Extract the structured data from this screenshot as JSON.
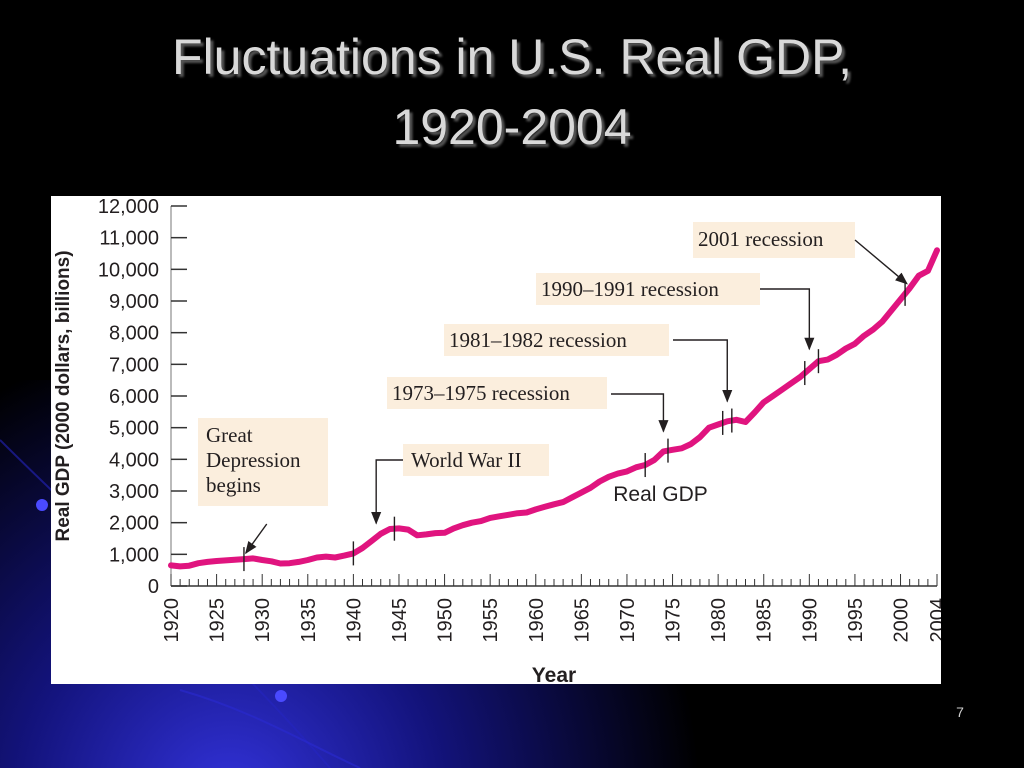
{
  "slide": {
    "title_line1": "Fluctuations in U.S. Real GDP,",
    "title_line2": "1920-2004",
    "page_number": "7"
  },
  "colors": {
    "background": "#000000",
    "line": "#e0147f",
    "callout_fill": "#fbeedd",
    "panel": "#ffffff"
  },
  "chart_data": {
    "type": "line",
    "ylabel": "Real GDP (2000 dollars, billions)",
    "xlabel": "Year",
    "ylim": [
      0,
      12000
    ],
    "yticks": [
      0,
      1000,
      2000,
      3000,
      4000,
      5000,
      6000,
      7000,
      8000,
      9000,
      10000,
      11000,
      12000
    ],
    "ytick_labels": [
      "0",
      "1,000",
      "2,000",
      "3,000",
      "4,000",
      "5,000",
      "6,000",
      "7,000",
      "8,000",
      "9,000",
      "10,000",
      "11,000",
      "12,000"
    ],
    "xlim": [
      1920,
      2004
    ],
    "xtick_labels": [
      "1920",
      "1925",
      "1930",
      "1935",
      "1940",
      "1945",
      "1950",
      "1955",
      "1960",
      "1965",
      "1970",
      "1975",
      "1980",
      "1985",
      "1990",
      "1995",
      "2000",
      "2004"
    ],
    "series_label": "Real GDP",
    "series": [
      {
        "x": [
          1920,
          1921,
          1922,
          1923,
          1924,
          1925,
          1926,
          1927,
          1928,
          1929,
          1930,
          1931,
          1932,
          1933,
          1934,
          1935,
          1936,
          1937,
          1938,
          1939,
          1940,
          1941,
          1942,
          1943,
          1944,
          1945,
          1946,
          1947,
          1948,
          1949,
          1950,
          1951,
          1952,
          1953,
          1954,
          1955,
          1956,
          1957,
          1958,
          1959,
          1960,
          1961,
          1962,
          1963,
          1964,
          1965,
          1966,
          1967,
          1968,
          1969,
          1970,
          1971,
          1972,
          1973,
          1974,
          1975,
          1976,
          1977,
          1978,
          1979,
          1980,
          1981,
          1982,
          1983,
          1984,
          1985,
          1986,
          1987,
          1988,
          1989,
          1990,
          1991,
          1992,
          1993,
          1994,
          1995,
          1996,
          1997,
          1998,
          1999,
          2000,
          2001,
          2002,
          2003,
          2004
        ],
        "y": [
          650,
          620,
          640,
          720,
          760,
          790,
          810,
          830,
          850,
          870,
          820,
          780,
          710,
          720,
          760,
          820,
          900,
          930,
          900,
          960,
          1030,
          1200,
          1420,
          1650,
          1800,
          1820,
          1780,
          1600,
          1630,
          1670,
          1680,
          1820,
          1920,
          2000,
          2050,
          2150,
          2200,
          2250,
          2300,
          2320,
          2420,
          2500,
          2580,
          2650,
          2800,
          2950,
          3100,
          3300,
          3450,
          3550,
          3620,
          3750,
          3820,
          3980,
          4250,
          4300,
          4350,
          4480,
          4700,
          5000,
          5100,
          5200,
          5250,
          5180,
          5480,
          5800,
          6000,
          6200,
          6400,
          6600,
          6850,
          7100,
          7150,
          7300,
          7500,
          7650,
          7900,
          8100,
          8350,
          8700,
          9050,
          9400,
          9800,
          9950,
          10600
        ]
      }
    ],
    "annotations": [
      {
        "text_lines": [
          "Great",
          "Depression",
          "begins"
        ],
        "year": 1928
      },
      {
        "text_lines": [
          "World War II"
        ],
        "year": 1942.5
      },
      {
        "text_lines": [
          "1973–1975 recession"
        ],
        "year": 1974
      },
      {
        "text_lines": [
          "1981–1982 recession"
        ],
        "year": 1981
      },
      {
        "text_lines": [
          "1990–1991 recession"
        ],
        "year": 1990
      },
      {
        "text_lines": [
          "2001 recession"
        ],
        "year": 2001
      }
    ],
    "recession_markers": [
      1928,
      1940,
      1944.5,
      1972,
      1974.5,
      1980.5,
      1981.5,
      1989.5,
      1991,
      2000.5
    ],
    "grid": false,
    "legend": "none"
  }
}
